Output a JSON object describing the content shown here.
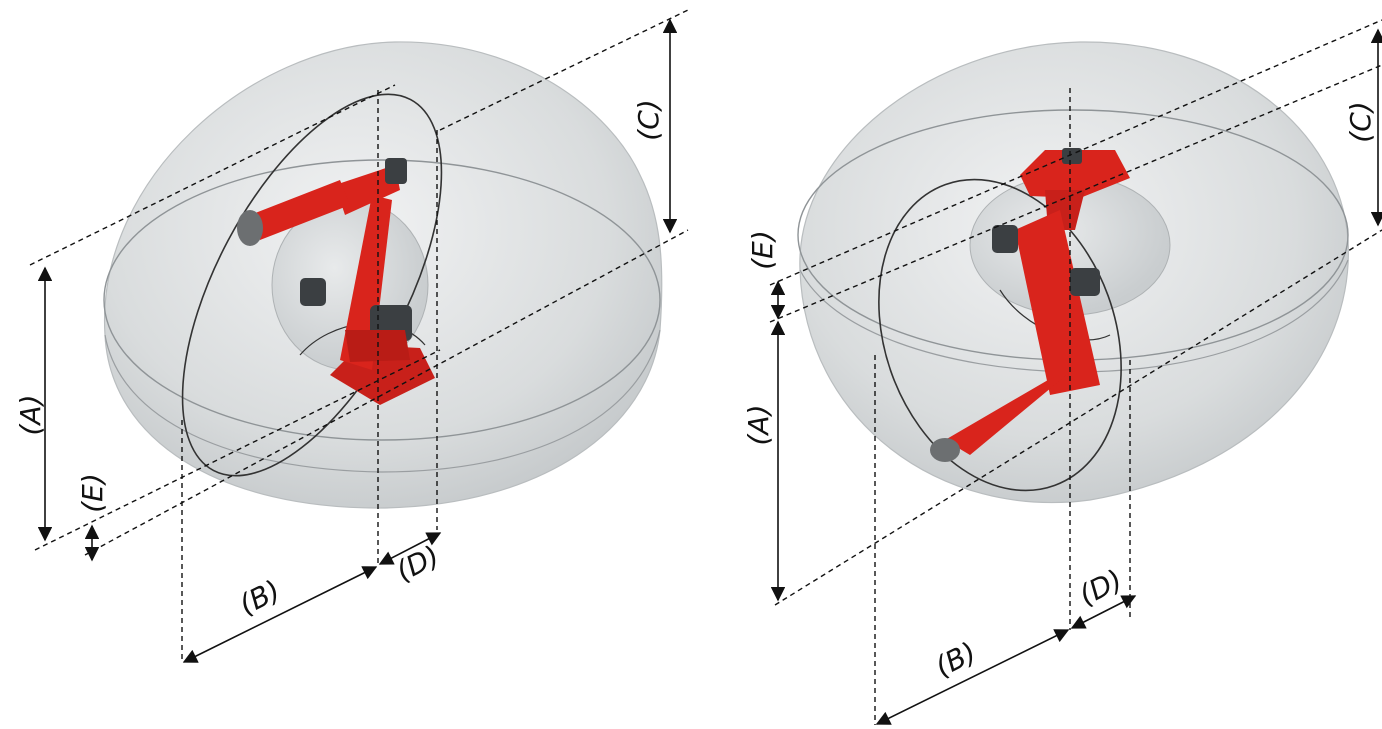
{
  "colors": {
    "envelope": "#d9dcdd",
    "envelope_edge": "#a8acae",
    "robot": "#d9241c",
    "robot_dark": "#9c1510",
    "motor": "#3b3f42",
    "line": "#111111"
  },
  "views": [
    {
      "name": "left-view",
      "labels": {
        "A": "(A)",
        "B": "(B)",
        "C": "(C)",
        "D": "(D)",
        "E": "(E)"
      }
    },
    {
      "name": "right-view",
      "labels": {
        "A": "(A)",
        "B": "(B)",
        "C": "(C)",
        "D": "(D)",
        "E": "(E)"
      }
    }
  ]
}
